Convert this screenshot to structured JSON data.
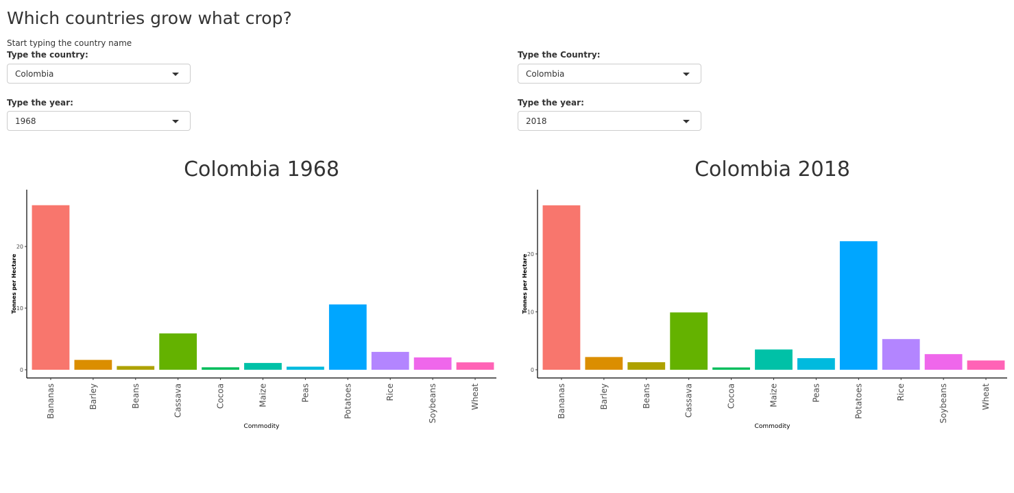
{
  "page": {
    "title": "Which countries grow what crop?",
    "hint": "Start typing the country name"
  },
  "left_controls": {
    "country_label": "Type the country:",
    "country_value": "Colombia",
    "year_label": "Type the year:",
    "year_value": "1968"
  },
  "right_controls": {
    "country_label": "Type the Country:",
    "country_value": "Colombia",
    "year_label": "Type the year:",
    "year_value": "2018"
  },
  "chart_data": [
    {
      "type": "bar",
      "title": "Colombia 1968",
      "xlabel": "Commodity",
      "ylabel": "Tonnes per Hectare",
      "categories": [
        "Bananas",
        "Barley",
        "Beans",
        "Cassava",
        "Cocoa",
        "Maize",
        "Peas",
        "Potatoes",
        "Rice",
        "Soybeans",
        "Wheat"
      ],
      "values": [
        26.7,
        1.6,
        0.6,
        5.9,
        0.4,
        1.1,
        0.5,
        10.6,
        2.9,
        2.0,
        1.2
      ],
      "colors": [
        "#F8766D",
        "#DB8E00",
        "#AEA200",
        "#64B200",
        "#00BD5C",
        "#00C1A7",
        "#00BADE",
        "#00A6FF",
        "#B385FF",
        "#EF67EB",
        "#FF63B6"
      ],
      "yticks": [
        0,
        10,
        20
      ],
      "ylim": [
        0,
        28
      ],
      "legend": "none"
    },
    {
      "type": "bar",
      "title": "Colombia 2018",
      "xlabel": "Commodity",
      "ylabel": "Tonnes per Hectare",
      "categories": [
        "Bananas",
        "Barley",
        "Beans",
        "Cassava",
        "Cocoa",
        "Maize",
        "Peas",
        "Potatoes",
        "Rice",
        "Soybeans",
        "Wheat"
      ],
      "values": [
        28.4,
        2.2,
        1.3,
        9.9,
        0.4,
        3.5,
        2.0,
        22.2,
        5.3,
        2.7,
        1.6
      ],
      "colors": [
        "#F8766D",
        "#DB8E00",
        "#AEA200",
        "#64B200",
        "#00BD5C",
        "#00C1A7",
        "#00BADE",
        "#00A6FF",
        "#B385FF",
        "#EF67EB",
        "#FF63B6"
      ],
      "yticks": [
        0,
        10,
        20
      ],
      "ylim": [
        0,
        29.8
      ],
      "legend": "none"
    }
  ]
}
